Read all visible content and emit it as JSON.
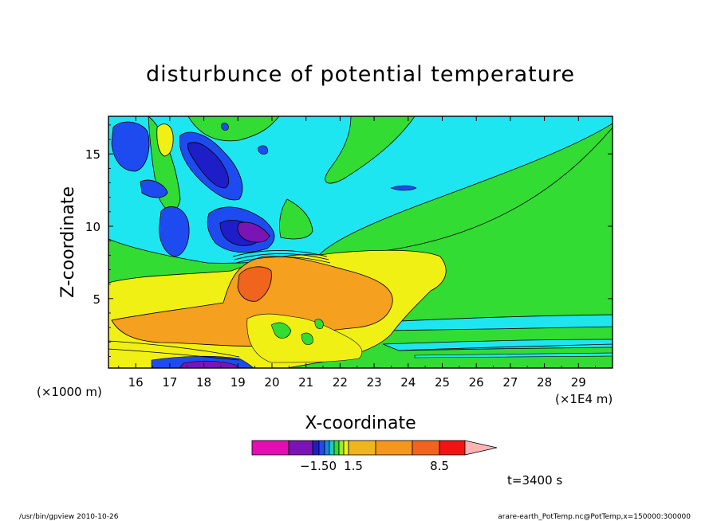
{
  "chart_data": {
    "type": "heatmap",
    "title": "disturbunce of potential temperature",
    "xlabel": "X-coordinate",
    "ylabel": "Z-coordinate",
    "x_tick_labels": [
      "16",
      "17",
      "18",
      "19",
      "20",
      "21",
      "22",
      "23",
      "24",
      "25",
      "26",
      "27",
      "28",
      "29"
    ],
    "y_tick_labels": [
      "5",
      "10",
      "15"
    ],
    "x_unit_left": "(×1000 m)",
    "x_unit_right": "(×1E4 m)",
    "xlim": [
      15.2,
      30.0
    ],
    "ylim": [
      0.2,
      17.6
    ],
    "colorbar": {
      "labels": [
        "−1.50",
        "1.5",
        "8.5"
      ],
      "colors": [
        "#e10fb4",
        "#7a14b4",
        "#1e1ec8",
        "#1e4bf0",
        "#148cdc",
        "#1ec8c8",
        "#32dc32",
        "#9ee632",
        "#f0f014",
        "#f0b41e",
        "#f5961e",
        "#f0641e",
        "#f01414",
        "#fa8070",
        "#ffb4b4"
      ]
    },
    "palette": {
      "magenta": "#e10fb4",
      "purple": "#7a14b4",
      "navy": "#1e1ec8",
      "blue": "#1e4bf0",
      "cyan": "#1ee6f0",
      "green": "#32dc32",
      "yellow": "#f0f014",
      "orange": "#f5a01e",
      "red": "#f0641e"
    }
  },
  "annotation_time": "t=3400 s",
  "footer": {
    "left": "/usr/bin/gpview  2010-10-26",
    "right": "arare-earth_PotTemp.nc@PotTemp,x=150000:300000"
  }
}
